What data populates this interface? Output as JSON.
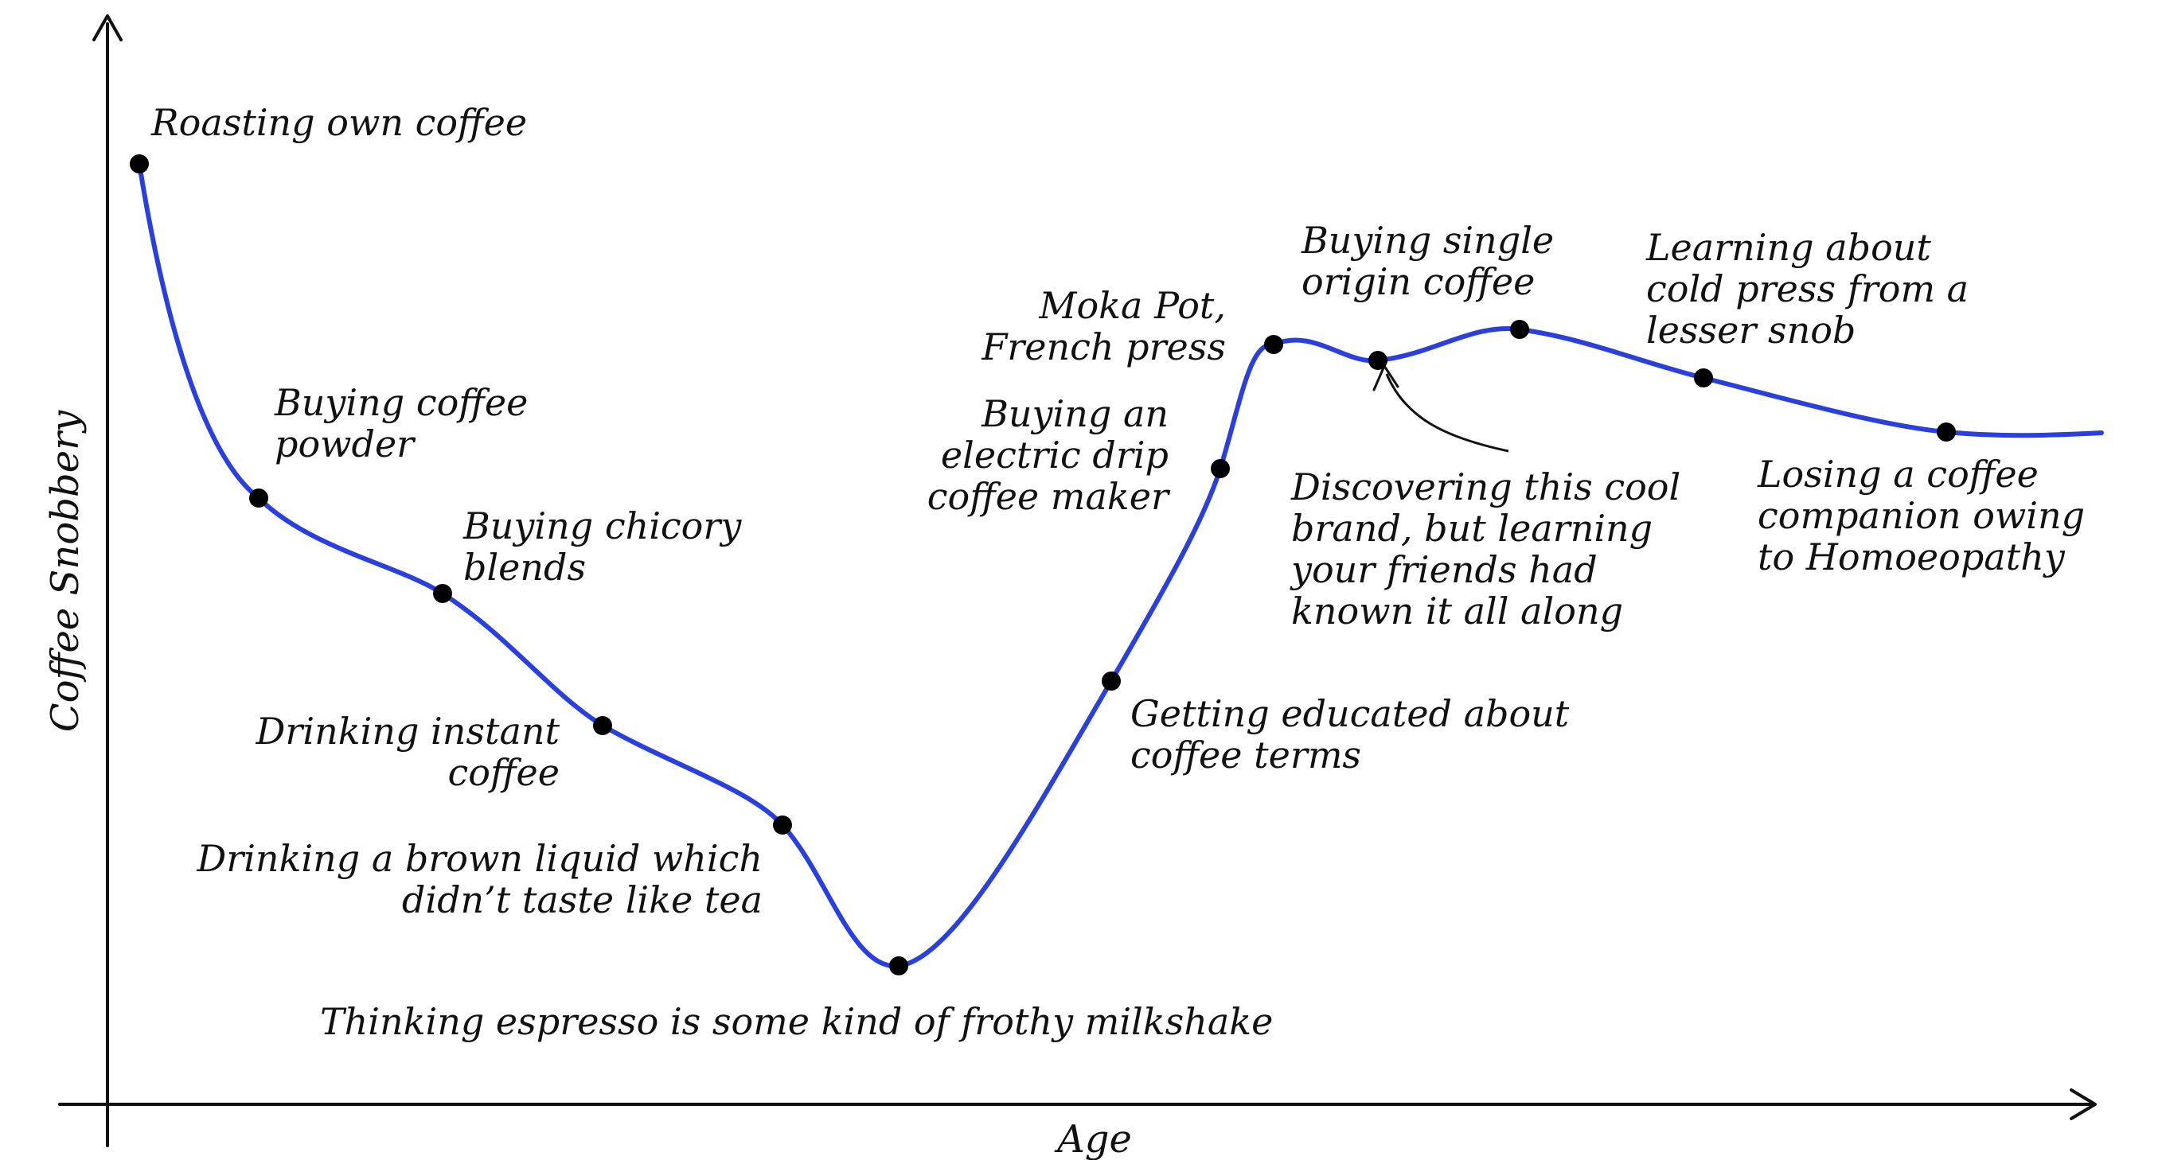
{
  "chart_data": {
    "type": "line",
    "xlabel": "Age",
    "ylabel": "Coffee Snobbery",
    "grid": false,
    "legend": "none",
    "axis_ticks": false,
    "curve_color": "#2A3FE0",
    "point_color": "#000000",
    "points": [
      {
        "label": [
          "Roasting own coffee"
        ]
      },
      {
        "label": [
          "Buying coffee",
          "powder"
        ]
      },
      {
        "label": [
          "Buying chicory",
          "blends"
        ]
      },
      {
        "label": [
          "Drinking instant",
          "coffee"
        ]
      },
      {
        "label": [
          "Drinking a brown liquid which",
          "didn’t taste like tea"
        ]
      },
      {
        "label": [
          "Thinking espresso is some kind of frothy milkshake"
        ]
      },
      {
        "label": [
          "Getting educated about",
          "coffee terms"
        ]
      },
      {
        "label": [
          "Buying an",
          "electric drip",
          "coffee maker"
        ]
      },
      {
        "label": [
          "Moka Pot,",
          "French press"
        ]
      },
      {
        "label": [
          "Discovering this cool",
          "brand, but learning",
          "your friends had",
          "known it all along"
        ]
      },
      {
        "label": [
          "Buying single",
          "origin coffee"
        ]
      },
      {
        "label": [
          "Learning about",
          "cold press from a",
          "lesser snob"
        ]
      },
      {
        "label": [
          "Losing a coffee",
          "companion owing",
          "to Homoeopathy"
        ]
      }
    ]
  }
}
